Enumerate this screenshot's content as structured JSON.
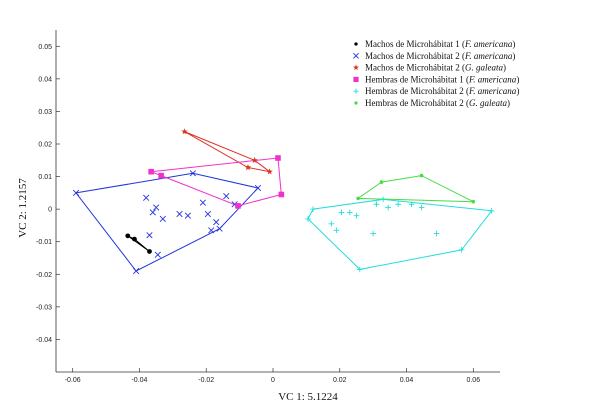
{
  "chart_data": {
    "type": "scatter",
    "title": "",
    "xlabel": "VC 1: 5.1224",
    "ylabel": "VC 2: 1.2157",
    "xlim": [
      -0.065,
      0.068
    ],
    "ylim": [
      -0.05,
      0.055
    ],
    "xticks": [
      "-0.06",
      "-0.04",
      "-0.02",
      "0",
      "0.02",
      "0.04",
      "0.06"
    ],
    "yticks": [
      "0.05",
      "0.04",
      "0.03",
      "0.02",
      "0.01",
      "0",
      "-0.01",
      "-0.02",
      "-0.03",
      "-0.04"
    ],
    "grid": false,
    "legend_position": "top-right",
    "series": [
      {
        "name": "Machos de Microhábitat 1",
        "species": "F. americana",
        "marker": "dot",
        "color": "#000000",
        "points": [
          [
            -0.0435,
            -0.0082
          ],
          [
            -0.0415,
            -0.0092
          ],
          [
            -0.037,
            -0.013
          ]
        ],
        "hull": [
          [
            -0.0435,
            -0.0082
          ],
          [
            -0.0415,
            -0.0092
          ],
          [
            -0.037,
            -0.013
          ]
        ]
      },
      {
        "name": "Machos de Microhábitat 2",
        "species": "F. americana",
        "marker": "x",
        "color": "#2233dd",
        "points": [
          [
            -0.059,
            0.005
          ],
          [
            -0.041,
            -0.019
          ],
          [
            -0.038,
            0.0035
          ],
          [
            -0.036,
            -0.001
          ],
          [
            -0.037,
            -0.008
          ],
          [
            -0.035,
            0.0005
          ],
          [
            -0.0345,
            -0.014
          ],
          [
            -0.033,
            -0.003
          ],
          [
            -0.028,
            -0.0015
          ],
          [
            -0.0255,
            -0.002
          ],
          [
            -0.024,
            0.011
          ],
          [
            -0.021,
            0.002
          ],
          [
            -0.0195,
            -0.0015
          ],
          [
            -0.0185,
            -0.0065
          ],
          [
            -0.016,
            -0.006
          ],
          [
            -0.014,
            0.004
          ],
          [
            -0.0115,
            0.0015
          ],
          [
            -0.017,
            -0.004
          ],
          [
            -0.0045,
            0.0065
          ]
        ],
        "hull": [
          [
            -0.059,
            0.005
          ],
          [
            -0.024,
            0.011
          ],
          [
            -0.0045,
            0.0065
          ],
          [
            -0.016,
            -0.006
          ],
          [
            -0.041,
            -0.019
          ]
        ]
      },
      {
        "name": "Machos de Microhábitat 2",
        "species": "G. galeata",
        "marker": "star",
        "color": "#dd3322",
        "points": [
          [
            -0.0265,
            0.0238
          ],
          [
            -0.0075,
            0.0128
          ],
          [
            -0.0055,
            0.015
          ],
          [
            -0.001,
            0.0115
          ]
        ],
        "hull": [
          [
            -0.0265,
            0.0238
          ],
          [
            -0.0055,
            0.015
          ],
          [
            -0.001,
            0.0115
          ],
          [
            -0.0075,
            0.0128
          ]
        ]
      },
      {
        "name": "Hembras de Microhábitat 1",
        "species": "F. americana",
        "marker": "square",
        "color": "#ee33cc",
        "points": [
          [
            -0.0365,
            0.0115
          ],
          [
            -0.0335,
            0.0103
          ],
          [
            -0.0105,
            0.001
          ],
          [
            0.0015,
            0.0157
          ],
          [
            0.0025,
            0.0045
          ]
        ],
        "hull": [
          [
            -0.0365,
            0.0115
          ],
          [
            0.0015,
            0.0157
          ],
          [
            0.0025,
            0.0045
          ],
          [
            -0.0105,
            0.001
          ],
          [
            -0.0335,
            0.0103
          ]
        ]
      },
      {
        "name": "Hembras de Microhábitat 2",
        "species": "F. americana",
        "marker": "plus",
        "color": "#22dddd",
        "points": [
          [
            0.0105,
            -0.003
          ],
          [
            0.012,
            0.0
          ],
          [
            0.0175,
            -0.0045
          ],
          [
            0.019,
            -0.0065
          ],
          [
            0.0205,
            -0.001
          ],
          [
            0.023,
            -0.001
          ],
          [
            0.025,
            -0.002
          ],
          [
            0.026,
            -0.0185
          ],
          [
            0.03,
            -0.0075
          ],
          [
            0.031,
            0.0015
          ],
          [
            0.033,
            0.003
          ],
          [
            0.0345,
            0.0005
          ],
          [
            0.0375,
            0.0015
          ],
          [
            0.0415,
            0.0015
          ],
          [
            0.0445,
            0.0005
          ],
          [
            0.049,
            -0.0075
          ],
          [
            0.0565,
            -0.0125
          ],
          [
            0.0655,
            -0.0005
          ]
        ],
        "hull": [
          [
            0.0105,
            -0.003
          ],
          [
            0.012,
            0.0
          ],
          [
            0.033,
            0.003
          ],
          [
            0.0655,
            -0.0005
          ],
          [
            0.0565,
            -0.0125
          ],
          [
            0.026,
            -0.0185
          ]
        ]
      },
      {
        "name": "Hembras de Microhábitat 2",
        "species": "G. galeata",
        "marker": "dot",
        "color": "#44dd44",
        "points": [
          [
            0.0255,
            0.0033
          ],
          [
            0.0325,
            0.0083
          ],
          [
            0.0445,
            0.0103
          ],
          [
            0.06,
            0.0023
          ]
        ],
        "hull": [
          [
            0.0255,
            0.0033
          ],
          [
            0.0325,
            0.0083
          ],
          [
            0.0445,
            0.0103
          ],
          [
            0.06,
            0.0023
          ]
        ]
      }
    ]
  }
}
